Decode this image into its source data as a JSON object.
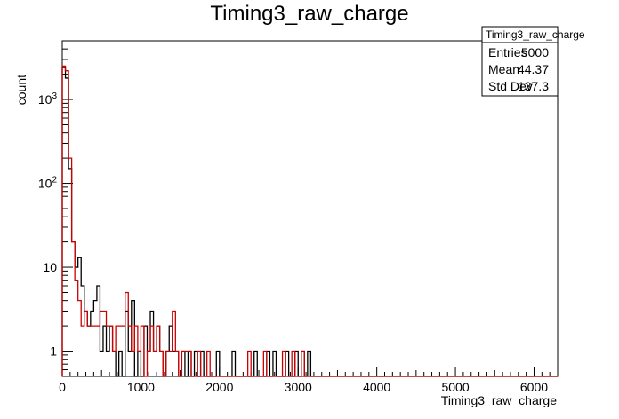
{
  "chart_data": {
    "type": "histogram",
    "title": "Timing3_raw_charge",
    "xlabel": "Timing3_raw_charge",
    "ylabel": "count",
    "xlim": [
      0,
      6300
    ],
    "ylim": [
      0.5,
      5000
    ],
    "yscale": "log",
    "grid": false,
    "bin_width": 40,
    "x_ticks": [
      "0",
      "1000",
      "2000",
      "3000",
      "4000",
      "5000",
      "6000"
    ],
    "x_tick_values": [
      0,
      1000,
      2000,
      3000,
      4000,
      5000,
      6000
    ],
    "y_ticks": [
      {
        "value": 1,
        "base": "1",
        "exp": ""
      },
      {
        "value": 10,
        "base": "10",
        "exp": ""
      },
      {
        "value": 100,
        "base": "10",
        "exp": "2"
      },
      {
        "value": 1000,
        "base": "10",
        "exp": "3"
      }
    ],
    "series": [
      {
        "color": "#000000",
        "bins": [
          [
            0,
            2400
          ],
          [
            40,
            1800
          ],
          [
            80,
            150
          ],
          [
            120,
            20
          ],
          [
            160,
            10
          ],
          [
            200,
            13
          ],
          [
            240,
            6
          ],
          [
            280,
            3
          ],
          [
            320,
            2
          ],
          [
            360,
            3
          ],
          [
            400,
            4
          ],
          [
            440,
            6
          ],
          [
            480,
            1
          ],
          [
            520,
            2
          ],
          [
            560,
            1
          ],
          [
            600,
            2
          ],
          [
            640,
            1
          ],
          [
            680,
            0.5
          ],
          [
            720,
            1
          ],
          [
            760,
            0.5
          ],
          [
            800,
            3
          ],
          [
            840,
            1
          ],
          [
            880,
            4
          ],
          [
            920,
            0.5
          ],
          [
            960,
            1
          ],
          [
            1000,
            0.5
          ],
          [
            1040,
            2
          ],
          [
            1080,
            1
          ],
          [
            1120,
            3
          ],
          [
            1160,
            1
          ],
          [
            1200,
            2
          ],
          [
            1240,
            1
          ],
          [
            1280,
            0.5
          ],
          [
            1320,
            1
          ],
          [
            1360,
            2
          ],
          [
            1400,
            1
          ],
          [
            1440,
            1
          ],
          [
            1480,
            0.5
          ],
          [
            1520,
            1
          ],
          [
            1560,
            0.5
          ],
          [
            1600,
            1
          ],
          [
            1640,
            0.5
          ],
          [
            1680,
            1
          ],
          [
            1720,
            0.5
          ],
          [
            1760,
            1
          ],
          [
            1800,
            0.5
          ],
          [
            1840,
            0.5
          ],
          [
            1880,
            0.5
          ],
          [
            1920,
            0.5
          ],
          [
            1960,
            1
          ],
          [
            2000,
            0.5
          ],
          [
            2040,
            0.5
          ],
          [
            2080,
            0.5
          ],
          [
            2120,
            0.5
          ],
          [
            2160,
            1
          ],
          [
            2200,
            0.5
          ],
          [
            2240,
            0.5
          ],
          [
            2280,
            0.5
          ],
          [
            2320,
            0.5
          ],
          [
            2360,
            0.5
          ],
          [
            2400,
            0.5
          ],
          [
            2440,
            1
          ],
          [
            2480,
            0.5
          ],
          [
            2520,
            0.5
          ],
          [
            2560,
            0.5
          ],
          [
            2600,
            1
          ],
          [
            2640,
            0.5
          ],
          [
            2680,
            1
          ],
          [
            2720,
            0.5
          ],
          [
            2760,
            0.5
          ],
          [
            2800,
            0.5
          ],
          [
            2840,
            1
          ],
          [
            2880,
            0.5
          ],
          [
            2920,
            0.5
          ],
          [
            2960,
            1
          ],
          [
            3000,
            0.5
          ],
          [
            3040,
            1
          ],
          [
            3080,
            0.5
          ],
          [
            3120,
            1
          ],
          [
            3160,
            0.5
          ]
        ]
      },
      {
        "color": "#cc0000",
        "bins": [
          [
            0,
            2500
          ],
          [
            40,
            2200
          ],
          [
            80,
            200
          ],
          [
            120,
            20
          ],
          [
            160,
            7
          ],
          [
            200,
            4
          ],
          [
            240,
            2
          ],
          [
            280,
            3
          ],
          [
            320,
            2
          ],
          [
            360,
            2
          ],
          [
            400,
            2
          ],
          [
            440,
            2
          ],
          [
            480,
            3
          ],
          [
            520,
            3
          ],
          [
            560,
            2
          ],
          [
            600,
            2
          ],
          [
            640,
            1
          ],
          [
            680,
            2
          ],
          [
            720,
            2
          ],
          [
            760,
            2
          ],
          [
            800,
            5
          ],
          [
            840,
            2
          ],
          [
            880,
            1
          ],
          [
            920,
            2
          ],
          [
            960,
            1
          ],
          [
            1000,
            2
          ],
          [
            1040,
            0.5
          ],
          [
            1080,
            1
          ],
          [
            1120,
            2
          ],
          [
            1160,
            1
          ],
          [
            1200,
            2
          ],
          [
            1240,
            1
          ],
          [
            1280,
            0.5
          ],
          [
            1320,
            1
          ],
          [
            1360,
            1
          ],
          [
            1400,
            3
          ],
          [
            1440,
            1
          ],
          [
            1480,
            0.5
          ],
          [
            1520,
            1
          ],
          [
            1560,
            1
          ],
          [
            1600,
            1
          ],
          [
            1640,
            0.5
          ],
          [
            1680,
            0.5
          ],
          [
            1720,
            1
          ],
          [
            1760,
            0.5
          ],
          [
            1800,
            0.5
          ],
          [
            1840,
            1
          ],
          [
            1880,
            0.5
          ],
          [
            1920,
            0.5
          ],
          [
            1960,
            0.5
          ],
          [
            2000,
            0.5
          ],
          [
            2040,
            0.5
          ],
          [
            2080,
            0.5
          ],
          [
            2120,
            0.5
          ],
          [
            2160,
            0.5
          ],
          [
            2200,
            0.5
          ],
          [
            2240,
            0.5
          ],
          [
            2280,
            0.5
          ],
          [
            2320,
            0.5
          ],
          [
            2360,
            1
          ],
          [
            2400,
            0.5
          ],
          [
            2440,
            0.5
          ],
          [
            2480,
            0.5
          ],
          [
            2520,
            0.5
          ],
          [
            2560,
            1
          ],
          [
            2600,
            0.5
          ],
          [
            2640,
            0.5
          ],
          [
            2680,
            0.5
          ],
          [
            2720,
            0.5
          ],
          [
            2760,
            0.5
          ],
          [
            2800,
            1
          ],
          [
            2840,
            0.5
          ],
          [
            2880,
            0.5
          ],
          [
            2920,
            1
          ],
          [
            2960,
            0.5
          ],
          [
            3000,
            0.5
          ],
          [
            3040,
            1
          ],
          [
            3080,
            0.5
          ],
          [
            3120,
            0.5
          ],
          [
            3160,
            0.5
          ]
        ]
      }
    ]
  },
  "stats_box": {
    "title": "Timing3_raw_charge",
    "rows": [
      {
        "label": "Entries",
        "value": "5000"
      },
      {
        "label": "Mean",
        "value": "44.37"
      },
      {
        "label": "Std Dev",
        "value": "137.3"
      }
    ]
  }
}
